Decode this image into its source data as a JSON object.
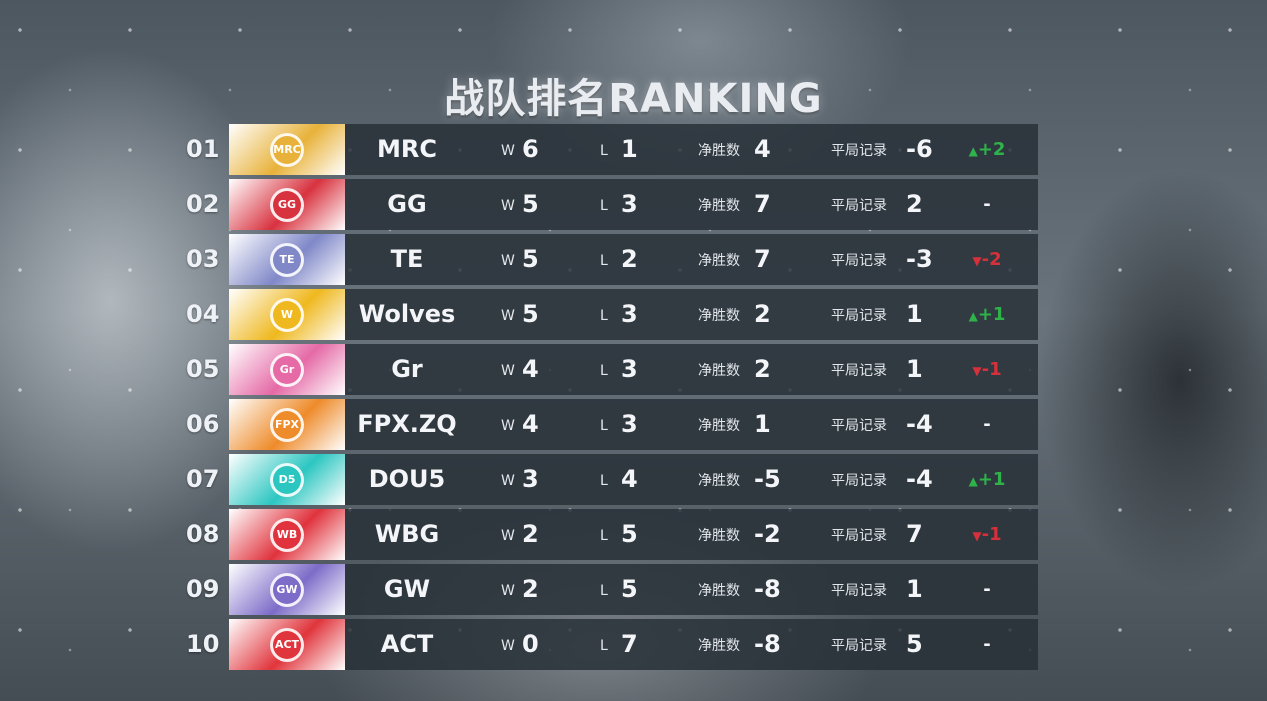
{
  "title": "战队排名RANKING",
  "labels": {
    "w": "W",
    "l": "L",
    "net": "净胜数",
    "draw": "平局记录"
  },
  "colors": {
    "up": "#2fb24a",
    "down": "#d6303b",
    "same": "#f3f5f8"
  },
  "rows": [
    {
      "rank": "01",
      "team": "MRC",
      "w": "6",
      "l": "1",
      "net": "4",
      "draw": "-6",
      "change": "+2",
      "dir": "up",
      "logo_icon": "mrc-crown-logo",
      "logo_color": "#e8b23a",
      "logo_text": "MRC"
    },
    {
      "rank": "02",
      "team": "GG",
      "w": "5",
      "l": "3",
      "net": "7",
      "draw": "2",
      "change": "-",
      "dir": "same",
      "logo_icon": "gg-ring-logo",
      "logo_color": "#d8323f",
      "logo_text": "GG"
    },
    {
      "rank": "03",
      "team": "TE",
      "w": "5",
      "l": "2",
      "net": "7",
      "draw": "-3",
      "change": "-2",
      "dir": "down",
      "logo_icon": "te-calligraphy-logo",
      "logo_color": "#8088c8",
      "logo_text": "TE"
    },
    {
      "rank": "04",
      "team": "Wolves",
      "w": "5",
      "l": "3",
      "net": "2",
      "draw": "1",
      "change": "+1",
      "dir": "up",
      "logo_icon": "wolves-head-logo",
      "logo_color": "#efb81e",
      "logo_text": "W"
    },
    {
      "rank": "05",
      "team": "Gr",
      "w": "4",
      "l": "3",
      "net": "2",
      "draw": "1",
      "change": "-1",
      "dir": "down",
      "logo_icon": "gr-glory-logo",
      "logo_color": "#e56aa6",
      "logo_text": "Gr"
    },
    {
      "rank": "06",
      "team": "FPX.ZQ",
      "w": "4",
      "l": "3",
      "net": "1",
      "draw": "-4",
      "change": "-",
      "dir": "same",
      "logo_icon": "fpx-phoenix-logo",
      "logo_color": "#ee8b2a",
      "logo_text": "FPX"
    },
    {
      "rank": "07",
      "team": "DOU5",
      "w": "3",
      "l": "4",
      "net": "-5",
      "draw": "-4",
      "change": "+1",
      "dir": "up",
      "logo_icon": "dou5-stripes-logo",
      "logo_color": "#2cc6c1",
      "logo_text": "D5"
    },
    {
      "rank": "08",
      "team": "WBG",
      "w": "2",
      "l": "5",
      "net": "-2",
      "draw": "7",
      "change": "-1",
      "dir": "down",
      "logo_icon": "wbg-weibo-logo",
      "logo_color": "#e0333d",
      "logo_text": "WB"
    },
    {
      "rank": "09",
      "team": "GW",
      "w": "2",
      "l": "5",
      "net": "-8",
      "draw": "1",
      "change": "-",
      "dir": "same",
      "logo_icon": "gw-wings-logo",
      "logo_color": "#7d6cc8",
      "logo_text": "GW"
    },
    {
      "rank": "10",
      "team": "ACT",
      "w": "0",
      "l": "7",
      "net": "-8",
      "draw": "5",
      "change": "-",
      "dir": "same",
      "logo_icon": "act-emblem-logo",
      "logo_color": "#e0353c",
      "logo_text": "ACT"
    }
  ]
}
